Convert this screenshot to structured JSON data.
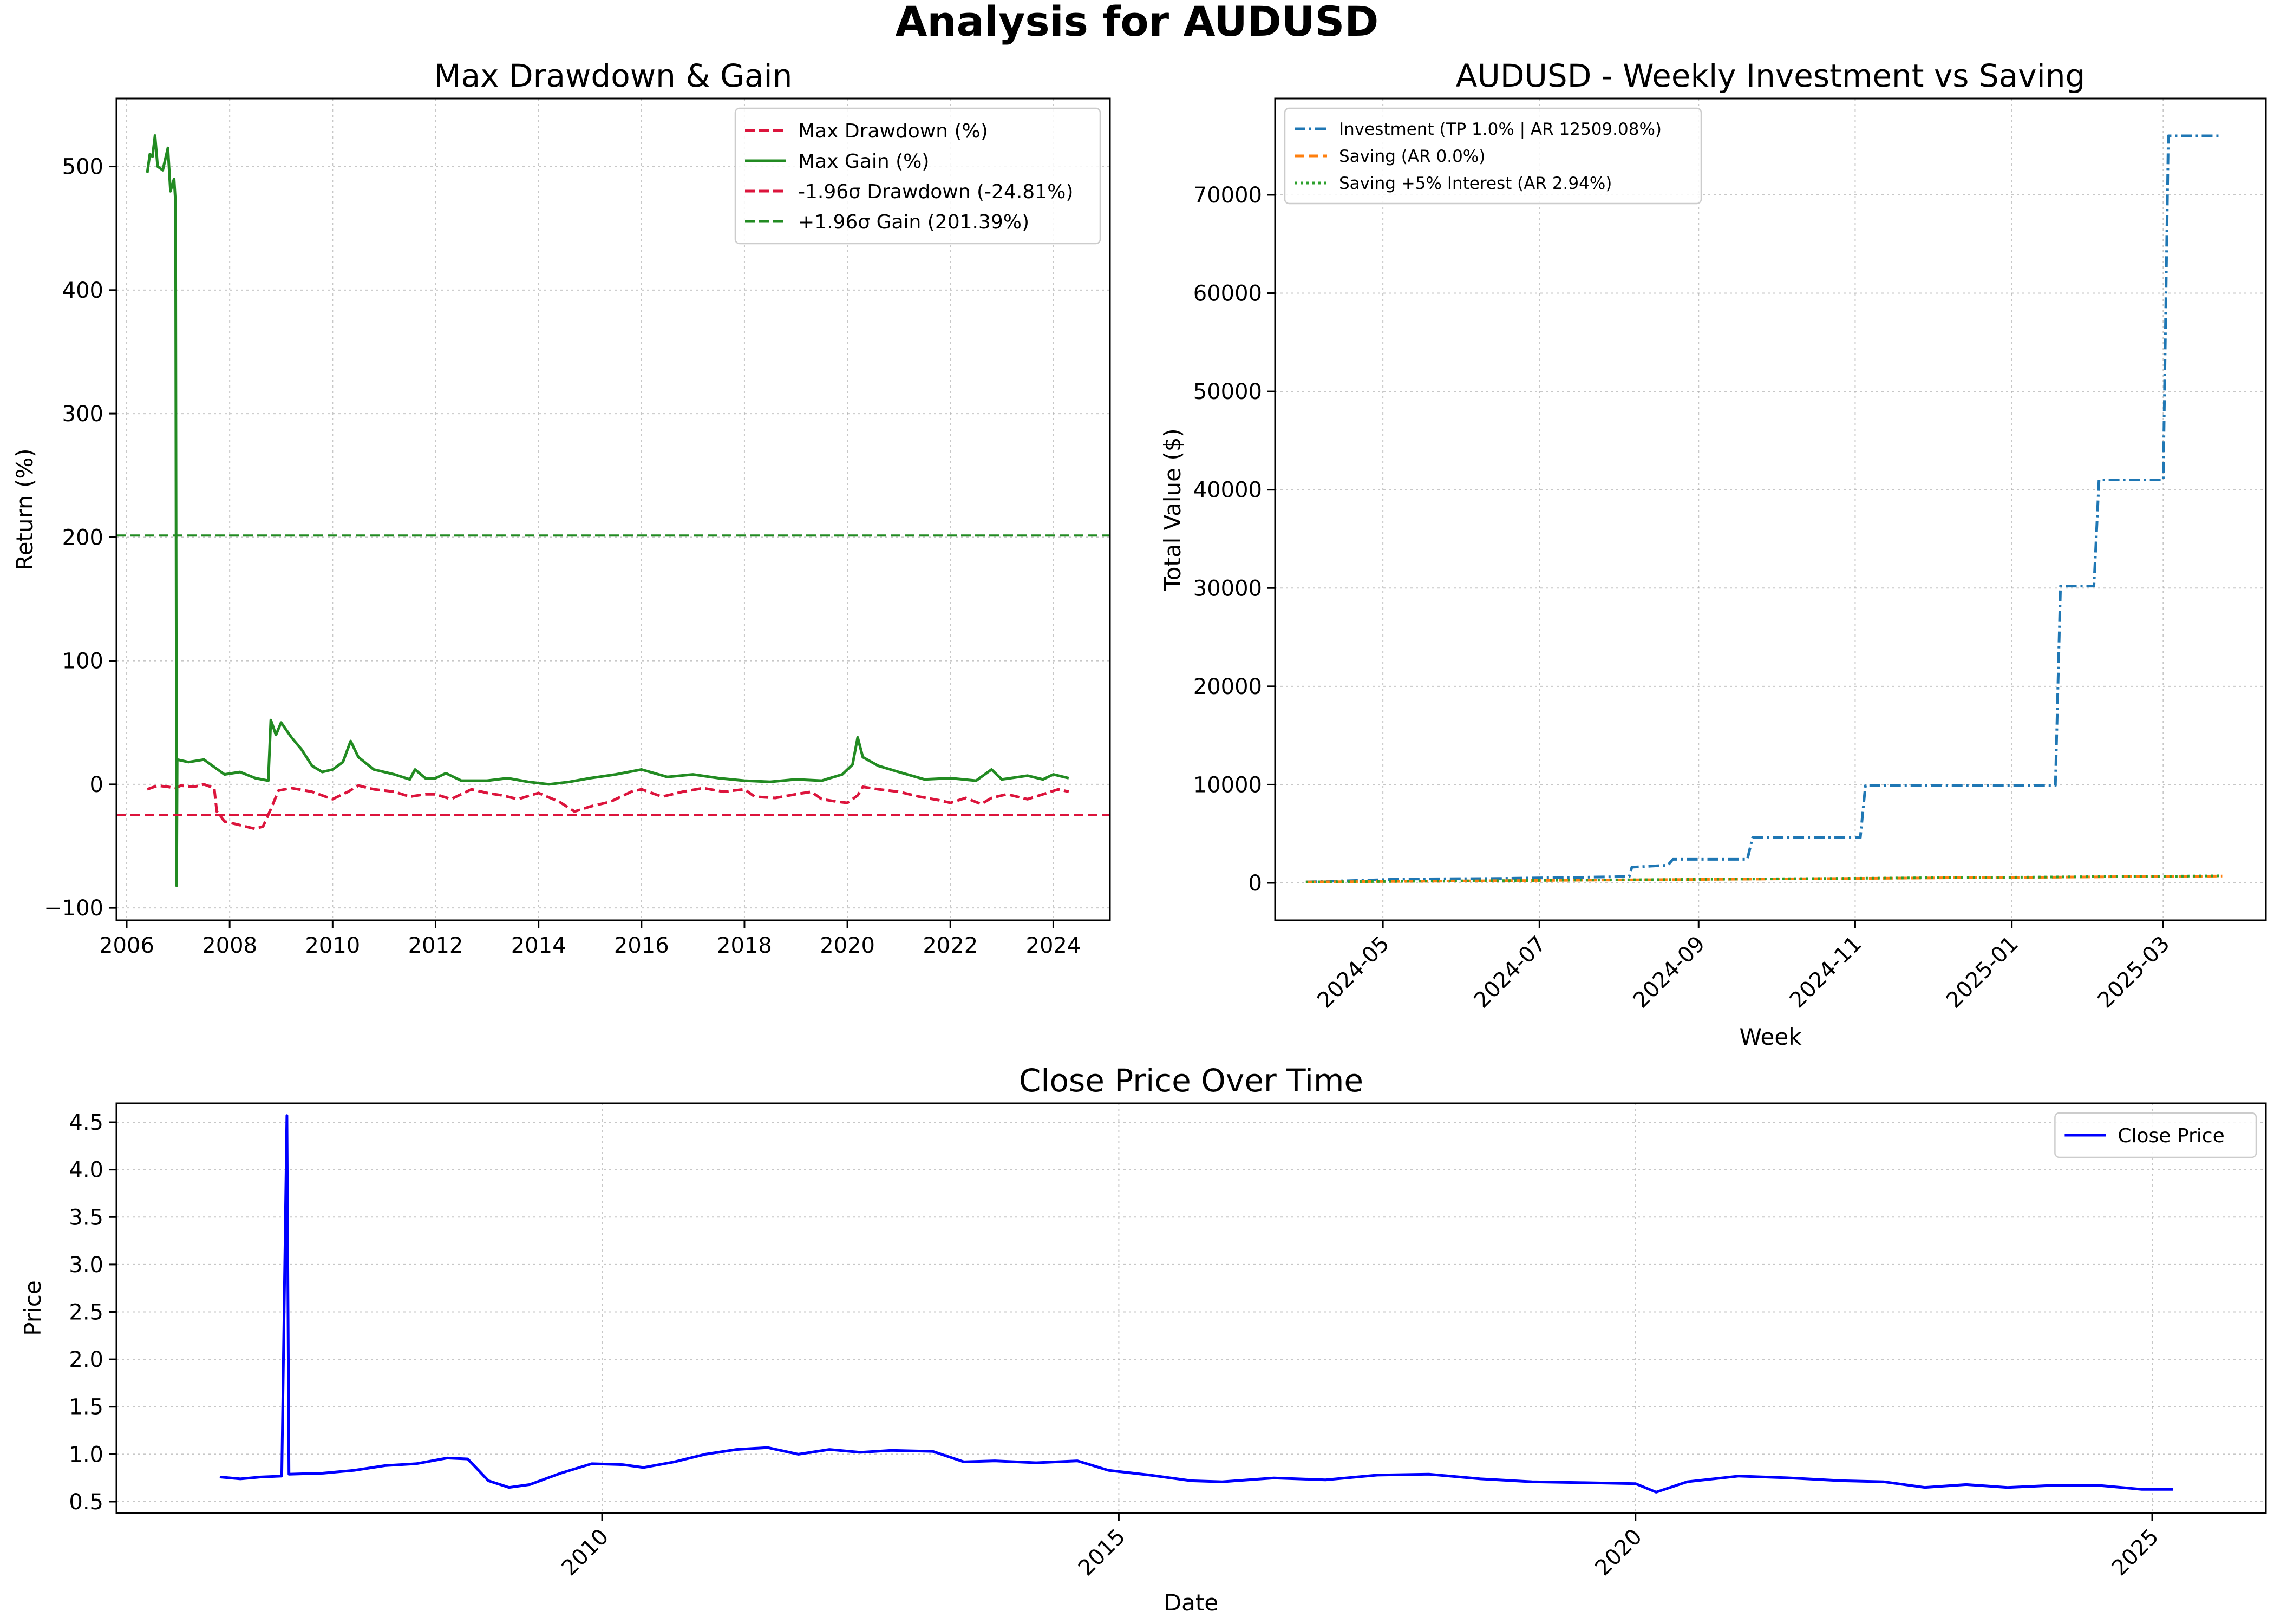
{
  "figure": {
    "title": "Analysis for AUDUSD"
  },
  "chart_data": [
    {
      "id": "drawdown",
      "type": "line",
      "title": "Max Drawdown & Gain",
      "xlabel": "",
      "ylabel": "Return (%)",
      "xlim": [
        2005.8,
        2025.1
      ],
      "ylim": [
        -110,
        555
      ],
      "xticks": [
        2006,
        2008,
        2010,
        2012,
        2014,
        2016,
        2018,
        2020,
        2022,
        2024
      ],
      "yticks": [
        -100,
        0,
        100,
        200,
        300,
        400,
        500
      ],
      "grid": true,
      "legend_position": "top-right",
      "series": [
        {
          "name": "Max Drawdown (%)",
          "color": "#dc143c",
          "style": "dashed",
          "points": [
            [
              2006.4,
              -4
            ],
            [
              2006.6,
              -1
            ],
            [
              2006.8,
              -2
            ],
            [
              2006.95,
              -3
            ],
            [
              2007.05,
              -1
            ],
            [
              2007.3,
              -2
            ],
            [
              2007.5,
              0
            ],
            [
              2007.7,
              -3
            ],
            [
              2007.75,
              -22
            ],
            [
              2007.9,
              -30
            ],
            [
              2008.2,
              -33
            ],
            [
              2008.5,
              -36
            ],
            [
              2008.65,
              -34
            ],
            [
              2008.8,
              -20
            ],
            [
              2008.95,
              -5
            ],
            [
              2009.2,
              -3
            ],
            [
              2009.6,
              -6
            ],
            [
              2010.0,
              -12
            ],
            [
              2010.3,
              -6
            ],
            [
              2010.5,
              -1
            ],
            [
              2010.8,
              -4
            ],
            [
              2011.2,
              -6
            ],
            [
              2011.5,
              -10
            ],
            [
              2011.8,
              -8
            ],
            [
              2012.0,
              -8
            ],
            [
              2012.3,
              -12
            ],
            [
              2012.7,
              -4
            ],
            [
              2013.0,
              -7
            ],
            [
              2013.3,
              -9
            ],
            [
              2013.6,
              -12
            ],
            [
              2014.0,
              -7
            ],
            [
              2014.4,
              -14
            ],
            [
              2014.7,
              -22
            ],
            [
              2015.0,
              -18
            ],
            [
              2015.4,
              -14
            ],
            [
              2015.8,
              -6
            ],
            [
              2016.0,
              -4
            ],
            [
              2016.4,
              -10
            ],
            [
              2016.8,
              -6
            ],
            [
              2017.2,
              -3
            ],
            [
              2017.6,
              -6
            ],
            [
              2018.0,
              -4
            ],
            [
              2018.2,
              -10
            ],
            [
              2018.6,
              -11
            ],
            [
              2019.0,
              -8
            ],
            [
              2019.3,
              -6
            ],
            [
              2019.5,
              -12
            ],
            [
              2019.8,
              -14
            ],
            [
              2020.0,
              -15
            ],
            [
              2020.2,
              -9
            ],
            [
              2020.3,
              -2
            ],
            [
              2020.6,
              -4
            ],
            [
              2021.0,
              -6
            ],
            [
              2021.4,
              -10
            ],
            [
              2021.8,
              -13
            ],
            [
              2022.0,
              -15
            ],
            [
              2022.3,
              -11
            ],
            [
              2022.6,
              -16
            ],
            [
              2022.8,
              -11
            ],
            [
              2023.1,
              -8
            ],
            [
              2023.5,
              -12
            ],
            [
              2023.8,
              -8
            ],
            [
              2024.1,
              -4
            ],
            [
              2024.3,
              -6
            ]
          ]
        },
        {
          "name": "Max Gain (%)",
          "color": "#228b22",
          "style": "solid",
          "points": [
            [
              2006.4,
              495
            ],
            [
              2006.45,
              510
            ],
            [
              2006.5,
              508
            ],
            [
              2006.55,
              525
            ],
            [
              2006.6,
              500
            ],
            [
              2006.7,
              497
            ],
            [
              2006.8,
              515
            ],
            [
              2006.85,
              480
            ],
            [
              2006.92,
              490
            ],
            [
              2006.95,
              470
            ],
            [
              2006.97,
              -82
            ],
            [
              2006.98,
              20
            ],
            [
              2007.2,
              18
            ],
            [
              2007.5,
              20
            ],
            [
              2007.7,
              14
            ],
            [
              2007.9,
              8
            ],
            [
              2008.2,
              10
            ],
            [
              2008.5,
              5
            ],
            [
              2008.75,
              3
            ],
            [
              2008.8,
              52
            ],
            [
              2008.9,
              40
            ],
            [
              2009.0,
              50
            ],
            [
              2009.2,
              38
            ],
            [
              2009.4,
              28
            ],
            [
              2009.6,
              15
            ],
            [
              2009.8,
              10
            ],
            [
              2010.0,
              12
            ],
            [
              2010.2,
              18
            ],
            [
              2010.35,
              35
            ],
            [
              2010.5,
              22
            ],
            [
              2010.8,
              12
            ],
            [
              2011.2,
              8
            ],
            [
              2011.5,
              4
            ],
            [
              2011.6,
              12
            ],
            [
              2011.8,
              5
            ],
            [
              2012.0,
              5
            ],
            [
              2012.2,
              9
            ],
            [
              2012.5,
              3
            ],
            [
              2013.0,
              3
            ],
            [
              2013.4,
              5
            ],
            [
              2013.8,
              2
            ],
            [
              2014.2,
              0
            ],
            [
              2014.6,
              2
            ],
            [
              2015.0,
              5
            ],
            [
              2015.5,
              8
            ],
            [
              2016.0,
              12
            ],
            [
              2016.5,
              6
            ],
            [
              2017.0,
              8
            ],
            [
              2017.5,
              5
            ],
            [
              2018.0,
              3
            ],
            [
              2018.5,
              2
            ],
            [
              2019.0,
              4
            ],
            [
              2019.5,
              3
            ],
            [
              2019.9,
              8
            ],
            [
              2020.1,
              16
            ],
            [
              2020.2,
              38
            ],
            [
              2020.3,
              22
            ],
            [
              2020.6,
              15
            ],
            [
              2021.0,
              10
            ],
            [
              2021.5,
              4
            ],
            [
              2022.0,
              5
            ],
            [
              2022.5,
              3
            ],
            [
              2022.8,
              12
            ],
            [
              2023.0,
              4
            ],
            [
              2023.5,
              7
            ],
            [
              2023.8,
              4
            ],
            [
              2024.0,
              8
            ],
            [
              2024.3,
              5
            ]
          ]
        },
        {
          "name": "-1.96σ Drawdown (-24.81%)",
          "color": "#dc143c",
          "style": "dashed",
          "hline": -24.81
        },
        {
          "name": "+1.96σ Gain (201.39%)",
          "color": "#228b22",
          "style": "dashed",
          "hline": 201.39
        }
      ]
    },
    {
      "id": "investment",
      "type": "line",
      "title": "AUDUSD - Weekly Investment vs Saving",
      "xlabel": "Week",
      "ylabel": "Total Value ($)",
      "xlim": [
        "2024-03-20",
        "2025-04-10"
      ],
      "ylim": [
        -3800,
        79800
      ],
      "xticks": [
        "2024-05",
        "2024-07",
        "2024-09",
        "2024-11",
        "2025-01",
        "2025-03"
      ],
      "yticks": [
        0,
        10000,
        20000,
        30000,
        40000,
        50000,
        60000,
        70000
      ],
      "grid": true,
      "legend_position": "top-left",
      "series": [
        {
          "name": "Investment (TP 1.0% | AR 12509.08%)",
          "color": "#1f77b4",
          "style": "dashdot",
          "points": [
            [
              "2024-04-01",
              100
            ],
            [
              "2024-05-10",
              400
            ],
            [
              "2024-06-15",
              450
            ],
            [
              "2024-08-05",
              650
            ],
            [
              "2024-08-06",
              1600
            ],
            [
              "2024-08-20",
              1800
            ],
            [
              "2024-08-22",
              2400
            ],
            [
              "2024-09-20",
              2400
            ],
            [
              "2024-09-22",
              4600
            ],
            [
              "2024-11-03",
              4600
            ],
            [
              "2024-11-05",
              9900
            ],
            [
              "2025-01-18",
              9900
            ],
            [
              "2025-01-20",
              30200
            ],
            [
              "2025-02-02",
              30200
            ],
            [
              "2025-02-04",
              41000
            ],
            [
              "2025-03-01",
              41000
            ],
            [
              "2025-03-03",
              76000
            ],
            [
              "2025-03-24",
              76000
            ]
          ]
        },
        {
          "name": "Saving (AR 0.0%)",
          "color": "#ff7f0e",
          "style": "dashed",
          "points": [
            [
              "2024-04-01",
              100
            ],
            [
              "2025-03-24",
              700
            ]
          ]
        },
        {
          "name": "Saving +5% Interest (AR 2.94%)",
          "color": "#2ca02c",
          "style": "dotted",
          "points": [
            [
              "2024-04-01",
              100
            ],
            [
              "2025-03-24",
              720
            ]
          ]
        }
      ]
    },
    {
      "id": "close",
      "type": "line",
      "title": "Close Price Over Time",
      "xlabel": "Date",
      "ylabel": "Price",
      "xlim": [
        2005.3,
        2026.1
      ],
      "ylim": [
        0.38,
        4.7
      ],
      "xticks": [
        2010,
        2015,
        2020,
        2025
      ],
      "yticks": [
        0.5,
        1.0,
        1.5,
        2.0,
        2.5,
        3.0,
        3.5,
        4.0,
        4.5
      ],
      "grid": true,
      "legend_position": "top-right",
      "series": [
        {
          "name": "Close Price",
          "color": "#0000ff",
          "style": "solid",
          "points": [
            [
              2006.3,
              0.76
            ],
            [
              2006.5,
              0.74
            ],
            [
              2006.7,
              0.76
            ],
            [
              2006.9,
              0.77
            ],
            [
              2006.95,
              4.57
            ],
            [
              2006.97,
              0.79
            ],
            [
              2007.3,
              0.8
            ],
            [
              2007.6,
              0.83
            ],
            [
              2007.9,
              0.88
            ],
            [
              2008.2,
              0.9
            ],
            [
              2008.5,
              0.96
            ],
            [
              2008.7,
              0.95
            ],
            [
              2008.9,
              0.72
            ],
            [
              2009.1,
              0.65
            ],
            [
              2009.3,
              0.68
            ],
            [
              2009.6,
              0.8
            ],
            [
              2009.9,
              0.9
            ],
            [
              2010.2,
              0.89
            ],
            [
              2010.4,
              0.86
            ],
            [
              2010.7,
              0.92
            ],
            [
              2011.0,
              1.0
            ],
            [
              2011.3,
              1.05
            ],
            [
              2011.6,
              1.07
            ],
            [
              2011.9,
              1.0
            ],
            [
              2012.2,
              1.05
            ],
            [
              2012.5,
              1.02
            ],
            [
              2012.8,
              1.04
            ],
            [
              2013.2,
              1.03
            ],
            [
              2013.5,
              0.92
            ],
            [
              2013.8,
              0.93
            ],
            [
              2014.2,
              0.91
            ],
            [
              2014.6,
              0.93
            ],
            [
              2014.9,
              0.83
            ],
            [
              2015.3,
              0.78
            ],
            [
              2015.7,
              0.72
            ],
            [
              2016.0,
              0.71
            ],
            [
              2016.5,
              0.75
            ],
            [
              2017.0,
              0.73
            ],
            [
              2017.5,
              0.78
            ],
            [
              2018.0,
              0.79
            ],
            [
              2018.5,
              0.74
            ],
            [
              2019.0,
              0.71
            ],
            [
              2019.5,
              0.7
            ],
            [
              2020.0,
              0.69
            ],
            [
              2020.2,
              0.6
            ],
            [
              2020.5,
              0.71
            ],
            [
              2021.0,
              0.77
            ],
            [
              2021.5,
              0.75
            ],
            [
              2022.0,
              0.72
            ],
            [
              2022.4,
              0.71
            ],
            [
              2022.8,
              0.65
            ],
            [
              2023.2,
              0.68
            ],
            [
              2023.6,
              0.65
            ],
            [
              2024.0,
              0.67
            ],
            [
              2024.5,
              0.67
            ],
            [
              2024.9,
              0.63
            ],
            [
              2025.2,
              0.63
            ]
          ]
        }
      ]
    }
  ]
}
